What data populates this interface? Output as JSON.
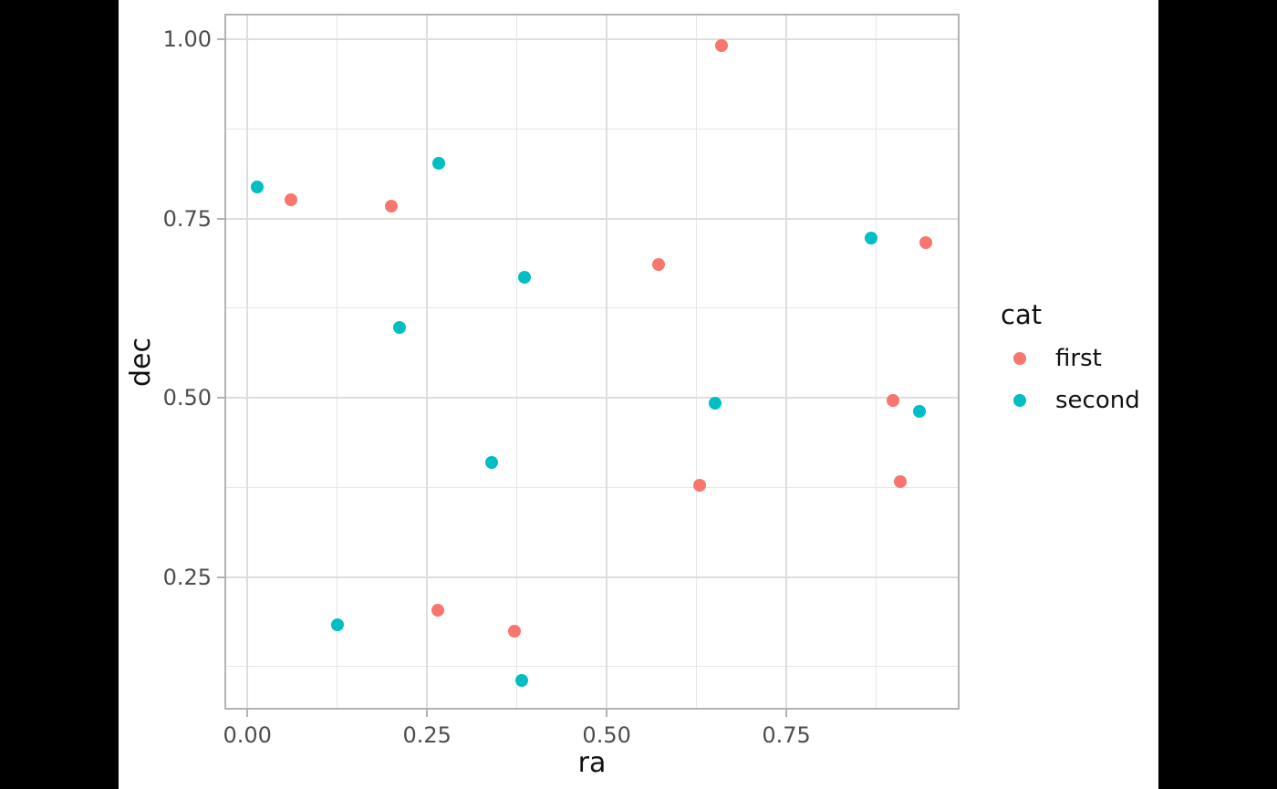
{
  "colors": {
    "letterbox": "#000000",
    "figure_background": "#FFFFFF",
    "panel_border": "#B3B3B3",
    "grid_major": "#DEDEDE",
    "grid_minor": "#E7E7E7",
    "tick_text": "#4D4D4D",
    "title_text": "#111111",
    "series_first": "#F8766D",
    "series_second": "#00BFC4"
  },
  "chart_data": {
    "type": "scatter",
    "title": "",
    "xlabel": "ra",
    "ylabel": "dec",
    "legend_title": "cat",
    "legend_position": "right",
    "grid": "on",
    "xlim": [
      -0.032,
      0.991
    ],
    "ylim": [
      0.065,
      1.036
    ],
    "x_ticks": [
      {
        "v": 0.0,
        "label": "0.00"
      },
      {
        "v": 0.25,
        "label": "0.25"
      },
      {
        "v": 0.5,
        "label": "0.50"
      },
      {
        "v": 0.75,
        "label": "0.75"
      }
    ],
    "x_minor_ticks": [
      0.125,
      0.375,
      0.625,
      0.875
    ],
    "y_ticks": [
      {
        "v": 0.25,
        "label": "0.25"
      },
      {
        "v": 0.5,
        "label": "0.50"
      },
      {
        "v": 0.75,
        "label": "0.75"
      },
      {
        "v": 1.0,
        "label": "1.00"
      }
    ],
    "y_minor_ticks": [
      0.125,
      0.375,
      0.625,
      0.875
    ],
    "series": [
      {
        "name": "first",
        "color": "#F8766D",
        "points": [
          [
            0.061,
            0.776
          ],
          [
            0.2,
            0.768
          ],
          [
            0.265,
            0.204
          ],
          [
            0.371,
            0.174
          ],
          [
            0.572,
            0.686
          ],
          [
            0.629,
            0.378
          ],
          [
            0.66,
            0.992
          ],
          [
            0.898,
            0.496
          ],
          [
            0.908,
            0.383
          ],
          [
            0.944,
            0.716
          ]
        ]
      },
      {
        "name": "second",
        "color": "#00BFC4",
        "points": [
          [
            0.014,
            0.794
          ],
          [
            0.126,
            0.183
          ],
          [
            0.212,
            0.598
          ],
          [
            0.266,
            0.827
          ],
          [
            0.34,
            0.41
          ],
          [
            0.382,
            0.106
          ],
          [
            0.385,
            0.668
          ],
          [
            0.651,
            0.492
          ],
          [
            0.868,
            0.723
          ],
          [
            0.935,
            0.481
          ]
        ]
      }
    ]
  }
}
